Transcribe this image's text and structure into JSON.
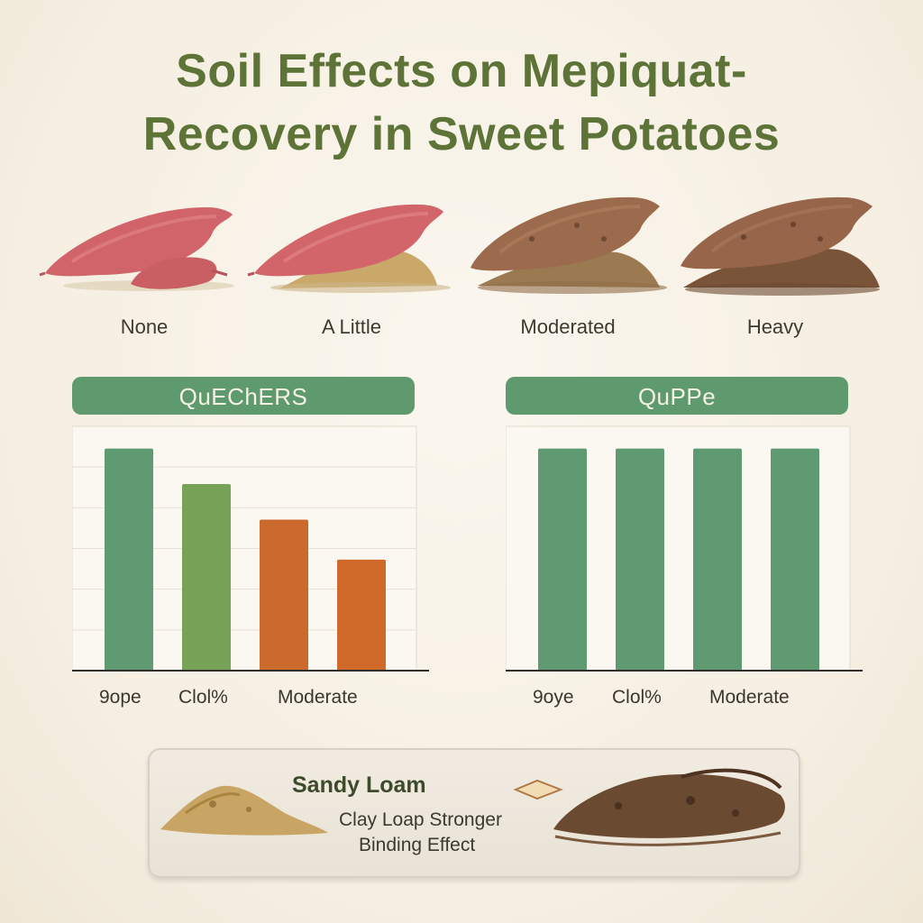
{
  "title": {
    "line1": "Soil Effects on Mepiquat-",
    "line2": "Recovery in Sweet Potatoes"
  },
  "potatoes": [
    {
      "label": "None"
    },
    {
      "label": "A Little"
    },
    {
      "label": "Moderated"
    },
    {
      "label": "Heavy"
    }
  ],
  "colors": {
    "title": "#5d7338",
    "header": "#5f9a6e",
    "green": "#5f9a72",
    "light_green": "#78a257",
    "orange": "#cc6a2e",
    "orange2": "#d06a2a"
  },
  "chart_data": [
    {
      "type": "bar",
      "title": "QuEChERS",
      "categories": [
        "9ope",
        "Clol%",
        "Moderate",
        ""
      ],
      "values": [
        100,
        84,
        68,
        50
      ],
      "bar_colors": [
        "#5f9a72",
        "#78a257",
        "#cc6a2e",
        "#d06a2a"
      ],
      "ylim": [
        0,
        110
      ],
      "grid": true
    },
    {
      "type": "bar",
      "title": "QuPPe",
      "categories": [
        "9oye",
        "Clol%",
        "Moderate",
        ""
      ],
      "values": [
        100,
        100,
        100,
        100
      ],
      "bar_colors": [
        "#5f9a72",
        "#5f9a72",
        "#5f9a72",
        "#5f9a72"
      ],
      "ylim": [
        0,
        110
      ],
      "grid": false
    }
  ],
  "legend": {
    "sandy_label": "Sandy Loam",
    "clay_line1": "Clay Loap Stronger",
    "clay_line2": "Binding Effect"
  }
}
